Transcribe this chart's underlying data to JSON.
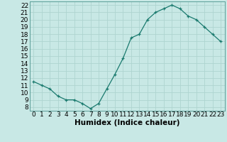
{
  "x": [
    0,
    1,
    2,
    3,
    4,
    5,
    6,
    7,
    8,
    9,
    10,
    11,
    12,
    13,
    14,
    15,
    16,
    17,
    18,
    19,
    20,
    21,
    22,
    23
  ],
  "y": [
    11.5,
    11.0,
    10.5,
    9.5,
    9.0,
    9.0,
    8.5,
    7.8,
    8.5,
    10.5,
    12.5,
    14.7,
    17.5,
    18.0,
    20.0,
    21.0,
    21.5,
    22.0,
    21.5,
    20.5,
    20.0,
    19.0,
    18.0,
    17.0
  ],
  "xlabel": "Humidex (Indice chaleur)",
  "xlim": [
    -0.5,
    23.5
  ],
  "ylim": [
    7.5,
    22.5
  ],
  "yticks": [
    8,
    9,
    10,
    11,
    12,
    13,
    14,
    15,
    16,
    17,
    18,
    19,
    20,
    21,
    22
  ],
  "xticks": [
    0,
    1,
    2,
    3,
    4,
    5,
    6,
    7,
    8,
    9,
    10,
    11,
    12,
    13,
    14,
    15,
    16,
    17,
    18,
    19,
    20,
    21,
    22,
    23
  ],
  "line_color": "#1a7a6e",
  "marker_color": "#1a7a6e",
  "bg_color": "#c8e8e5",
  "grid_color": "#aed4d0",
  "xlabel_fontsize": 7.5,
  "tick_fontsize": 6.5
}
